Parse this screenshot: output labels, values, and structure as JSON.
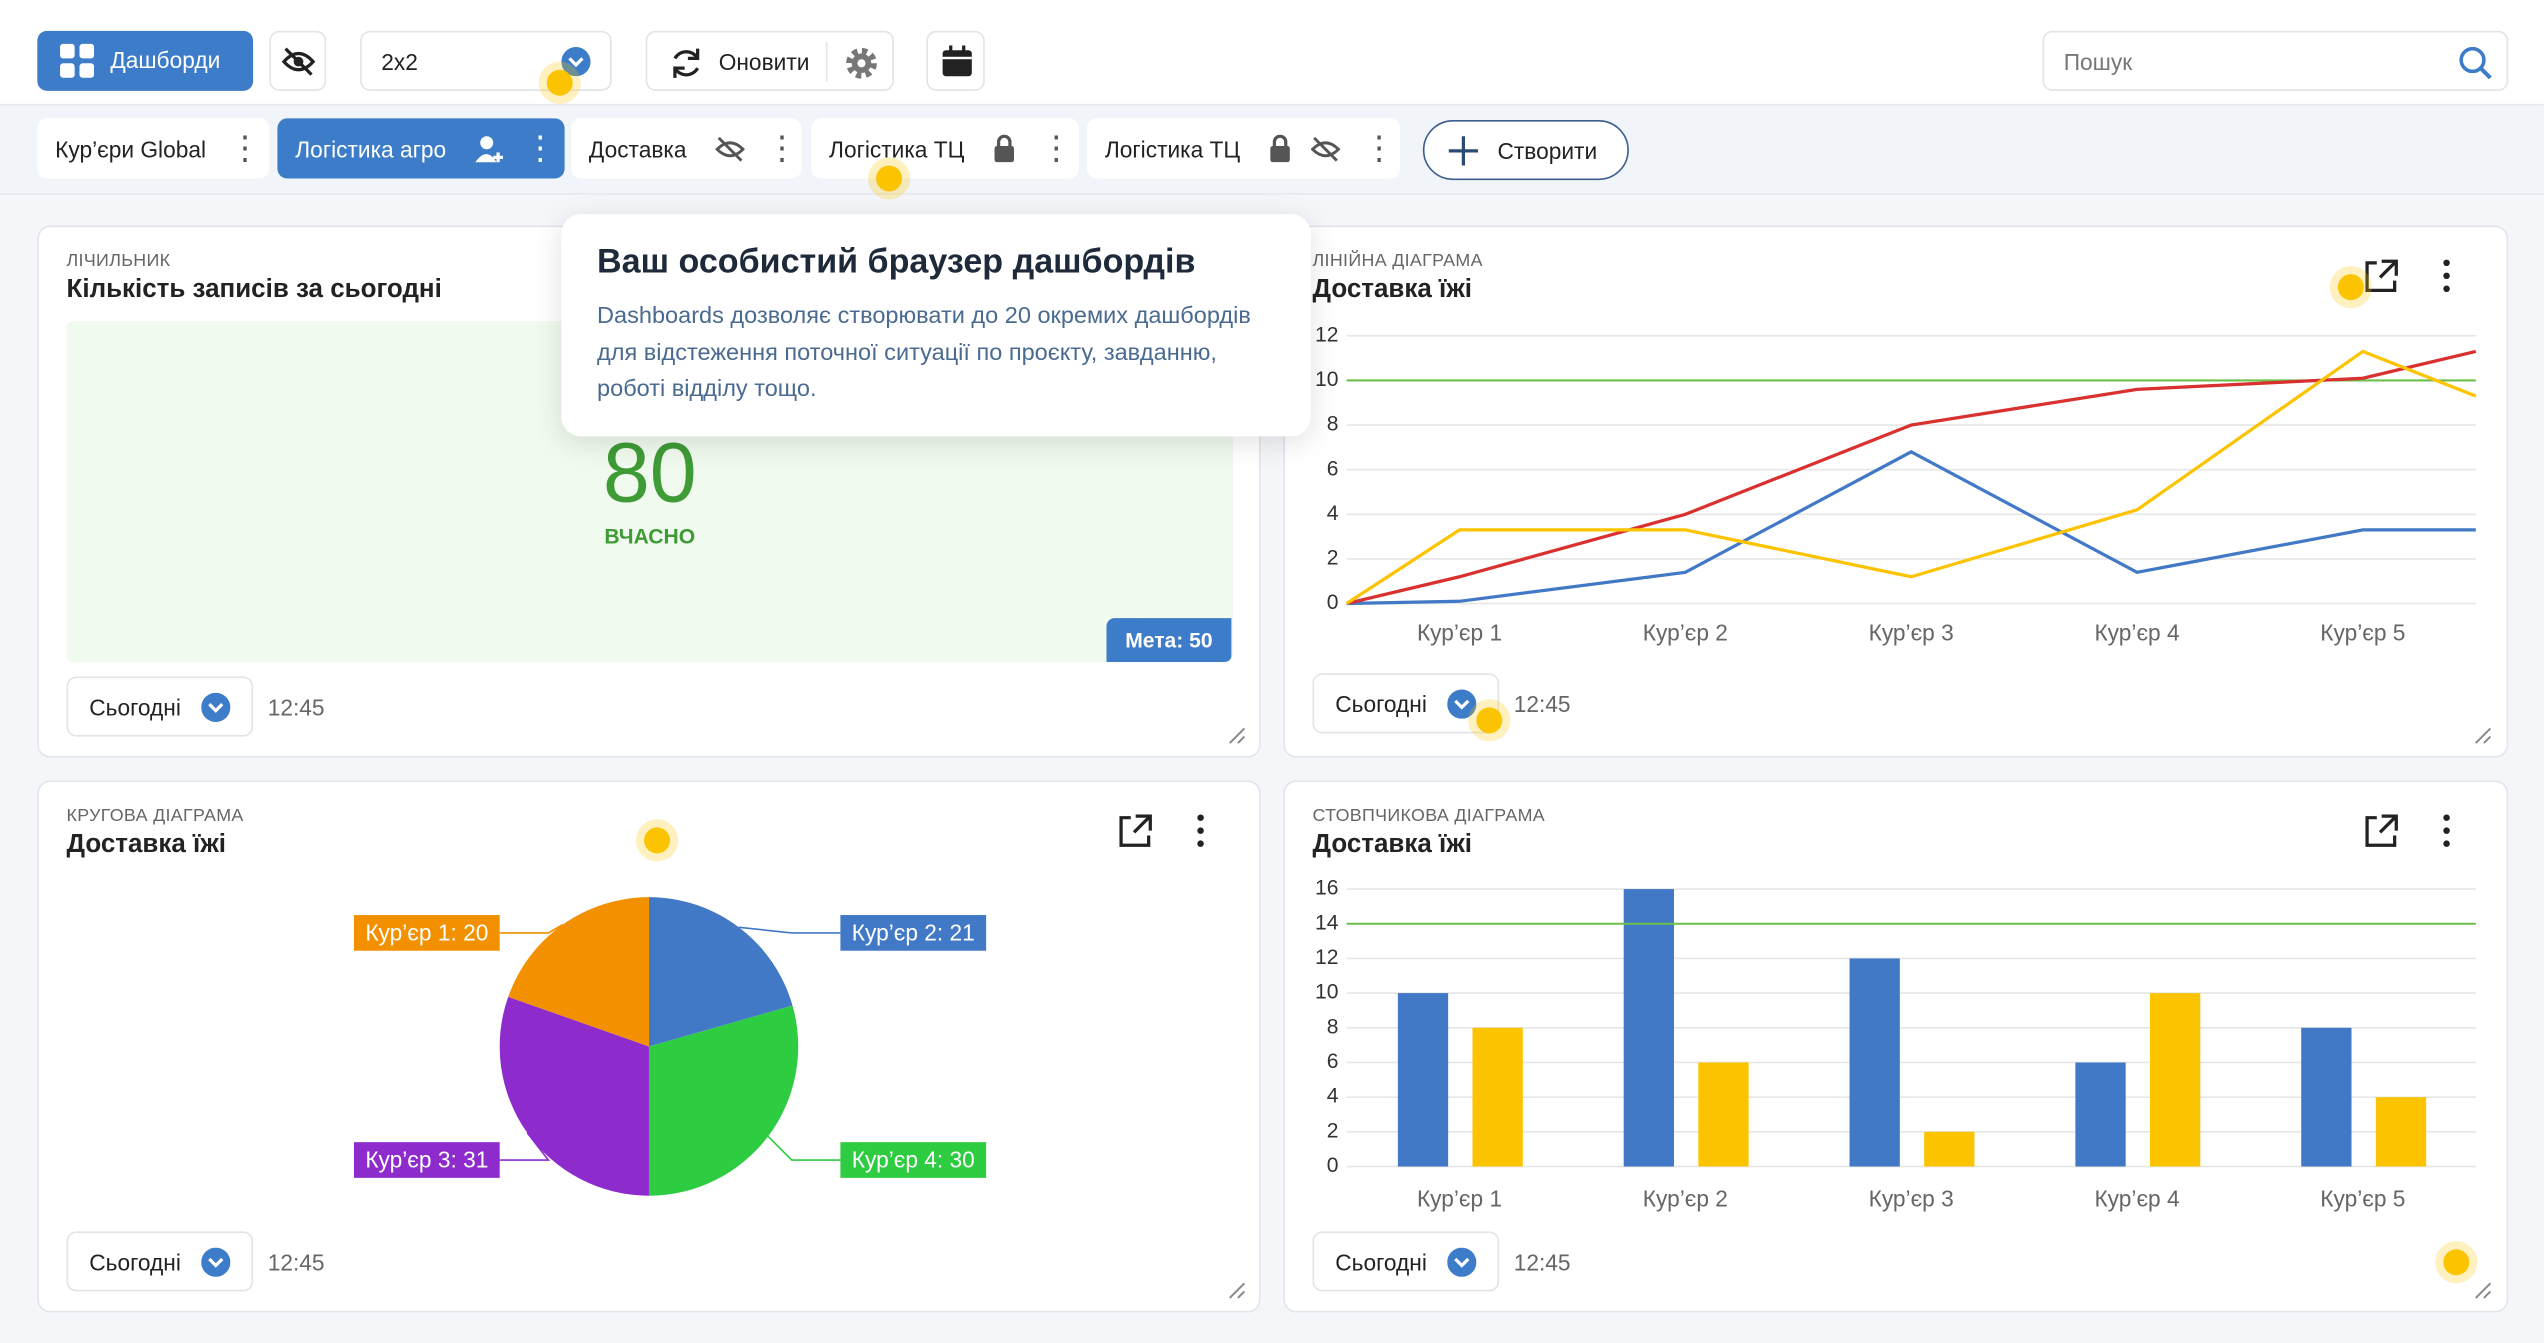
{
  "toolbar": {
    "dashboards_button": "Дашборди",
    "layout": "2x2",
    "refresh": "Оновити",
    "search_placeholder": "Пошук"
  },
  "tabs": [
    "Кур’єри Global",
    "Логістика агро",
    "Доставка",
    "Логістика ТЦ",
    "Логістика ТЦ"
  ],
  "create_button": "Створити",
  "tooltip": {
    "title": "Ваш особистий браузер дашбордів",
    "text": "Dashboards дозволяє створювати до 20 окремих дашбордів для відстеження поточної ситуації по проєкту, завданню, роботі відділу тощо."
  },
  "counter": {
    "kind": "ЛІЧИЛЬНИК",
    "title": "Кількість записів за сьогодні",
    "value": 80,
    "caption": "ВЧАСНО",
    "goal": "Мета: 50",
    "period": "Сьогодні",
    "time": "12:45"
  },
  "line_widget": {
    "kind": "ЛІНІЙНА ДІАГРАМА",
    "period": "Сьогодні",
    "time": "12:45",
    "chart_data": {
      "type": "line",
      "title": "Доставка їжі",
      "categories": [
        null,
        "Кур’єр 1",
        "Кур’єр 2",
        "Кур’єр 3",
        "Кур’єр 4",
        "Кур’єр 5",
        null
      ],
      "series": [
        {
          "color": "#4279c6",
          "values": [
            0,
            0.1,
            1.4,
            6.8,
            1.4,
            3.3,
            3.3
          ]
        },
        {
          "color": "#d93030",
          "values": [
            0,
            1.2,
            4,
            8,
            9.6,
            10.1,
            11.3
          ]
        },
        {
          "color": "#fcc400",
          "values": [
            0,
            3.3,
            3.3,
            1.2,
            4.2,
            11.3,
            9.3
          ]
        }
      ],
      "reference_line": {
        "value": 10,
        "color": "#6cc04a"
      },
      "ylim": [
        0,
        12
      ],
      "yticks": [
        0,
        2,
        4,
        6,
        8,
        10,
        12
      ],
      "grid": true
    }
  },
  "pie_widget": {
    "kind": "КРУГОВА ДІАГРАМА",
    "period": "Сьогодні",
    "time": "12:45",
    "chart_data": {
      "type": "pie",
      "title": "Доставка їжі",
      "categories": [
        "Кур’єр 2",
        "Кур’єр 4",
        "Кур’єр 3",
        "Кур’єр 1"
      ],
      "values": [
        21,
        30,
        31,
        20
      ],
      "value_labels": [
        "Кур’єр 2: 21",
        "Кур’єр 4: 30",
        "Кур’єр 3: 31",
        "Кур’єр 1: 20"
      ],
      "colors": [
        "#4279c6",
        "#2ecc40",
        "#8e2bcc",
        "#f29000"
      ]
    }
  },
  "bar_widget": {
    "kind": "СТОВПЧИКОВА ДІАГРАМА",
    "period": "Сьогодні",
    "time": "12:45",
    "chart_data": {
      "type": "bar",
      "title": "Доставка їжі",
      "categories": [
        "Кур’єр 1",
        "Кур’єр 2",
        "Кур’єр 3",
        "Кур’єр 4",
        "Кур’єр 5"
      ],
      "series": [
        {
          "color": "#4279c6",
          "values": [
            10,
            16,
            12,
            6,
            8
          ]
        },
        {
          "color": "#fcc400",
          "values": [
            8,
            6,
            2,
            10,
            4
          ]
        }
      ],
      "reference_line": {
        "value": 14,
        "color": "#6cc04a"
      },
      "ylim": [
        0,
        16
      ],
      "yticks": [
        0,
        2,
        4,
        6,
        8,
        10,
        12,
        14,
        16
      ],
      "grid": true
    }
  }
}
